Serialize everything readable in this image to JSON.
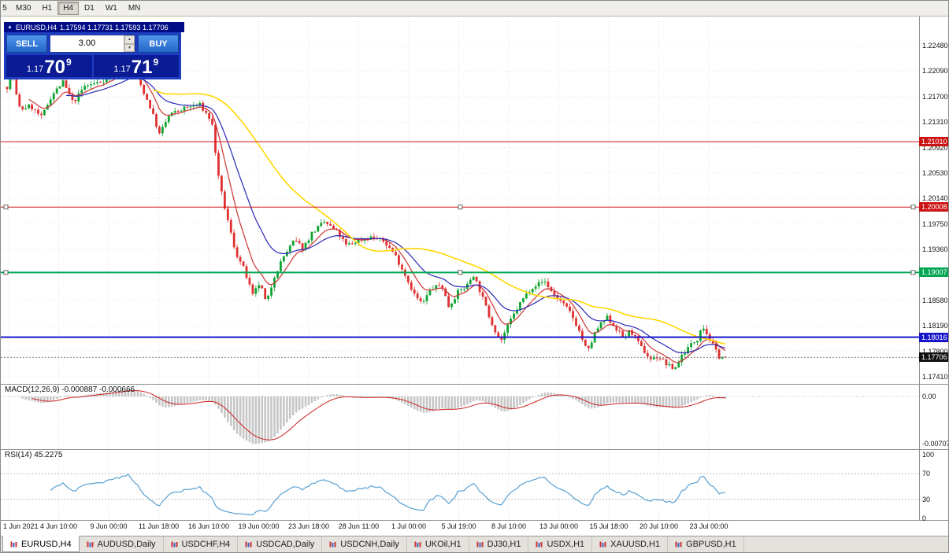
{
  "toolbar": {
    "timeframes": [
      "5",
      "M30",
      "H1",
      "H4",
      "D1",
      "W1",
      "MN"
    ],
    "active": "H4"
  },
  "quote_strip": {
    "collapse_icon": "▲",
    "symbol": "EURUSD,H4",
    "ohlc": "1.17594 1.17731 1.17593 1.17706"
  },
  "trade_panel": {
    "sell_label": "SELL",
    "buy_label": "BUY",
    "volume": "3.00",
    "spin_up_icon": "▲",
    "spin_down_icon": "▼",
    "sell_price": {
      "prefix": "1.17",
      "big": "70",
      "sup": "9"
    },
    "buy_price": {
      "prefix": "1.17",
      "big": "71",
      "sup": "9"
    }
  },
  "indicators": {
    "macd": {
      "label": "MACD(12,26,9) -0.000887 -0.000666",
      "params": [
        12,
        26,
        9
      ],
      "values": [
        -0.000887,
        -0.000666
      ],
      "axis": [
        {
          "text": "0.00",
          "value": 0
        },
        {
          "text": "-0.00707",
          "value": -0.00707
        }
      ]
    },
    "rsi": {
      "label": "RSI(14) 45.2275",
      "period": 14,
      "value": 45.2275,
      "axis": [
        {
          "text": "100",
          "value": 100
        },
        {
          "text": "70",
          "value": 70
        },
        {
          "text": "30",
          "value": 30
        },
        {
          "text": "0",
          "value": 0
        }
      ],
      "levels": [
        70,
        30
      ]
    }
  },
  "tabs": [
    {
      "label": "EURUSD,H4",
      "active": true
    },
    {
      "label": "AUDUSD,Daily",
      "active": false
    },
    {
      "label": "USDCHF,H4",
      "active": false
    },
    {
      "label": "USDCAD,Daily",
      "active": false
    },
    {
      "label": "USDCNH,Daily",
      "active": false
    },
    {
      "label": "UKOil,H1",
      "active": false
    },
    {
      "label": "DJ30,H1",
      "active": false
    },
    {
      "label": "USDX,H1",
      "active": false
    },
    {
      "label": "XAUUSD,H1",
      "active": false
    },
    {
      "label": "GBPUSD,H1",
      "active": false
    }
  ],
  "chart_data": {
    "type": "candlestick",
    "symbol": "EURUSD",
    "timeframe": "H4",
    "ohlc": {
      "open": 1.17594,
      "high": 1.17731,
      "low": 1.17593,
      "close": 1.17706
    },
    "y_range": [
      1.173,
      1.2277
    ],
    "y_ticks": [
      "1.22480",
      "1.22090",
      "1.21700",
      "1.21310",
      "1.20920",
      "1.20530",
      "1.20140",
      "1.19750",
      "1.19360",
      "1.18970",
      "1.18580",
      "1.18190",
      "1.17800",
      "1.17410"
    ],
    "x_labels": [
      "1 Jun 2021",
      "4 Jun 10:00",
      "9 Jun 00:00",
      "11 Jun 18:00",
      "16 Jun 10:00",
      "19 Jun 00:00",
      "23 Jun 18:00",
      "28 Jun 11:00",
      "1 Jul 00:00",
      "5 Jul 19:00",
      "8 Jul 10:00",
      "13 Jul 00:00",
      "15 Jul 18:00",
      "20 Jul 10:00",
      "23 Jul 00:00"
    ],
    "bars": 232,
    "bull_color": "#0fa330",
    "bear_color": "#e03030",
    "grid_color": "#e4e4e4",
    "levels": [
      {
        "price": 1.2101,
        "label": "1.21010",
        "color": "#cc1111",
        "width": 1,
        "handles": false
      },
      {
        "price": 1.20008,
        "label": "1.20008",
        "color": "#cc1111",
        "width": 1,
        "handles": true
      },
      {
        "price": 1.19007,
        "label": "1.19007",
        "color": "#00a651",
        "width": 2,
        "handles": true
      },
      {
        "price": 1.18016,
        "label": "1.18016",
        "color": "#1515cc",
        "width": 2,
        "handles": false
      }
    ],
    "current_price": {
      "price": 1.17706,
      "label": "1.17706",
      "color": "#111111"
    },
    "moving_averages": [
      {
        "period": 8,
        "color": "#cf3333",
        "kind": "ema"
      },
      {
        "period": 20,
        "color": "#2929b8",
        "kind": "ema"
      },
      {
        "period": 48,
        "color": "#ffd700",
        "kind": "sma"
      }
    ],
    "macd_signal_color": "#cc2222",
    "macd_hist_color": "#c6c6c6",
    "rsi_color": "#57a0d3",
    "price_path": [
      [
        0.0,
        1.2185
      ],
      [
        0.006,
        1.2215
      ],
      [
        0.012,
        1.2176
      ],
      [
        0.018,
        1.215
      ],
      [
        0.032,
        1.2156
      ],
      [
        0.048,
        1.2138
      ],
      [
        0.062,
        1.2172
      ],
      [
        0.078,
        1.2192
      ],
      [
        0.092,
        1.216
      ],
      [
        0.108,
        1.2186
      ],
      [
        0.128,
        1.2192
      ],
      [
        0.152,
        1.2206
      ],
      [
        0.168,
        1.2218
      ],
      [
        0.182,
        1.2198
      ],
      [
        0.2,
        1.2152
      ],
      [
        0.212,
        1.2112
      ],
      [
        0.226,
        1.2142
      ],
      [
        0.246,
        1.2152
      ],
      [
        0.268,
        1.2158
      ],
      [
        0.285,
        1.2132
      ],
      [
        0.295,
        1.204
      ],
      [
        0.305,
        1.199
      ],
      [
        0.318,
        1.1932
      ],
      [
        0.33,
        1.1905
      ],
      [
        0.342,
        1.1865
      ],
      [
        0.352,
        1.1885
      ],
      [
        0.361,
        1.1852
      ],
      [
        0.372,
        1.1895
      ],
      [
        0.385,
        1.1925
      ],
      [
        0.4,
        1.195
      ],
      [
        0.412,
        1.1938
      ],
      [
        0.425,
        1.1962
      ],
      [
        0.442,
        1.1978
      ],
      [
        0.46,
        1.1962
      ],
      [
        0.472,
        1.1942
      ],
      [
        0.49,
        1.195
      ],
      [
        0.508,
        1.1955
      ],
      [
        0.525,
        1.1948
      ],
      [
        0.54,
        1.1928
      ],
      [
        0.555,
        1.1895
      ],
      [
        0.568,
        1.1865
      ],
      [
        0.578,
        1.1852
      ],
      [
        0.59,
        1.1875
      ],
      [
        0.605,
        1.1882
      ],
      [
        0.615,
        1.1848
      ],
      [
        0.627,
        1.187
      ],
      [
        0.64,
        1.188
      ],
      [
        0.649,
        1.1898
      ],
      [
        0.66,
        1.1868
      ],
      [
        0.673,
        1.1828
      ],
      [
        0.687,
        1.1795
      ],
      [
        0.7,
        1.1825
      ],
      [
        0.715,
        1.1855
      ],
      [
        0.73,
        1.1878
      ],
      [
        0.748,
        1.1888
      ],
      [
        0.76,
        1.1868
      ],
      [
        0.772,
        1.1855
      ],
      [
        0.785,
        1.1838
      ],
      [
        0.795,
        1.1815
      ],
      [
        0.808,
        1.1778
      ],
      [
        0.82,
        1.1812
      ],
      [
        0.835,
        1.1832
      ],
      [
        0.848,
        1.1815
      ],
      [
        0.858,
        1.18
      ],
      [
        0.868,
        1.1812
      ],
      [
        0.88,
        1.179
      ],
      [
        0.895,
        1.1768
      ],
      [
        0.907,
        1.1772
      ],
      [
        0.918,
        1.176
      ],
      [
        0.929,
        1.1752
      ],
      [
        0.94,
        1.1775
      ],
      [
        0.952,
        1.179
      ],
      [
        0.962,
        1.18
      ],
      [
        0.967,
        1.1822
      ],
      [
        0.975,
        1.1805
      ],
      [
        0.983,
        1.1788
      ],
      [
        0.991,
        1.1772
      ],
      [
        1.0,
        1.1771
      ]
    ]
  }
}
